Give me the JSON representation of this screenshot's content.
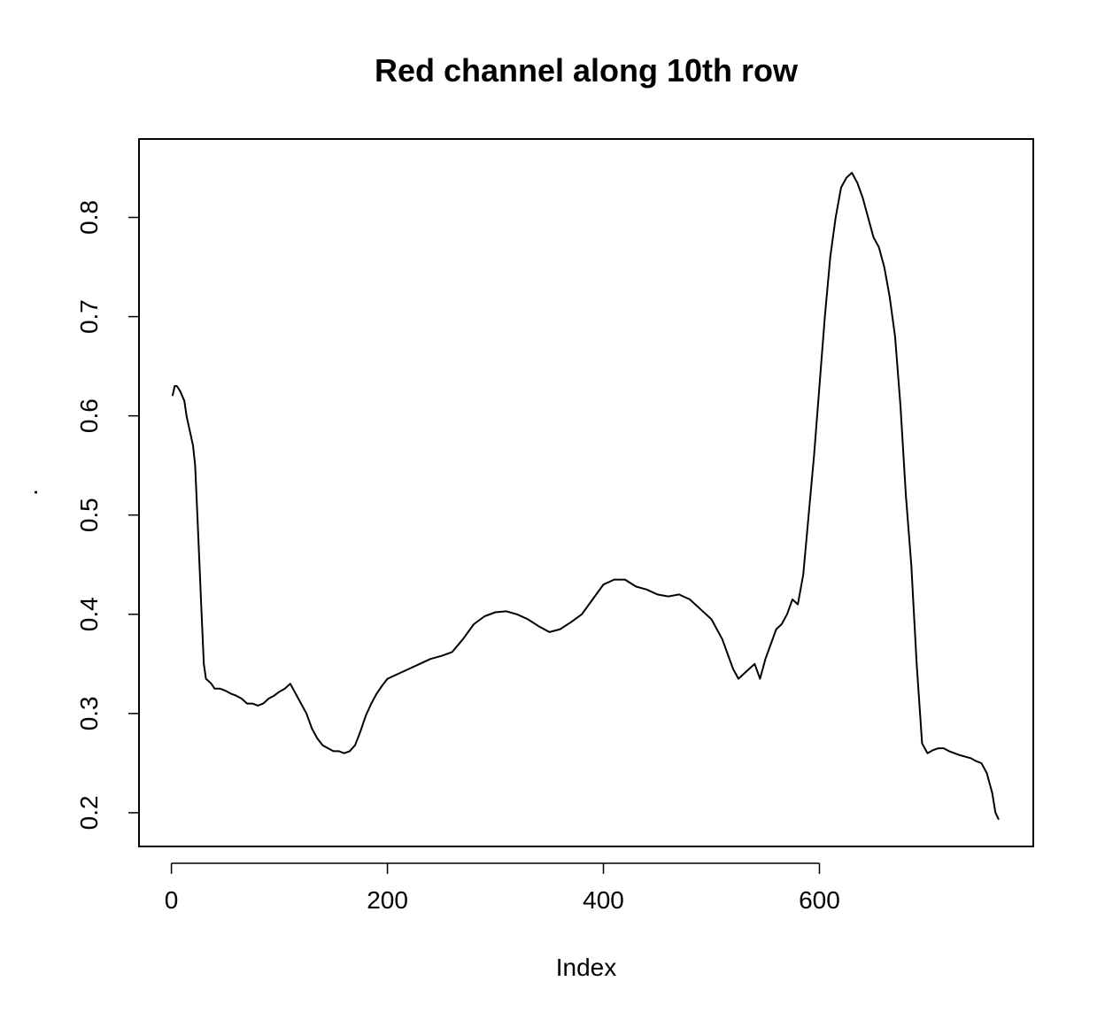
{
  "chart_data": {
    "type": "line",
    "title": "Red channel along 10th row",
    "xlabel": "Index",
    "ylabel": ".",
    "xlim": [
      -30,
      798
    ],
    "ylim": [
      0.166,
      0.879
    ],
    "xticks": [
      0,
      200,
      400,
      600
    ],
    "xtick_labels": [
      "0",
      "200",
      "400",
      "600"
    ],
    "yticks": [
      0.2,
      0.3,
      0.4,
      0.5,
      0.6,
      0.7,
      0.8
    ],
    "ytick_labels": [
      "0.2",
      "0.3",
      "0.4",
      "0.5",
      "0.6",
      "0.7",
      "0.8"
    ],
    "grid": false,
    "line_color": "#000000",
    "series": [
      {
        "x": [
          1,
          3,
          5,
          8,
          10,
          12,
          14,
          16,
          18,
          20,
          22,
          24,
          26,
          28,
          30,
          32,
          34,
          37,
          40,
          45,
          50,
          55,
          60,
          65,
          70,
          75,
          80,
          85,
          90,
          95,
          100,
          105,
          110,
          115,
          120,
          125,
          130,
          135,
          140,
          145,
          150,
          155,
          160,
          165,
          170,
          175,
          180,
          185,
          190,
          195,
          200,
          210,
          220,
          230,
          240,
          250,
          260,
          270,
          280,
          290,
          300,
          310,
          320,
          330,
          340,
          350,
          360,
          370,
          380,
          390,
          400,
          410,
          420,
          430,
          440,
          450,
          460,
          470,
          480,
          490,
          500,
          505,
          510,
          515,
          520,
          525,
          530,
          535,
          540,
          545,
          550,
          555,
          560,
          565,
          570,
          575,
          580,
          585,
          590,
          595,
          600,
          605,
          610,
          615,
          620,
          625,
          630,
          635,
          640,
          645,
          650,
          655,
          660,
          665,
          670,
          675,
          680,
          685,
          690,
          695,
          700,
          705,
          710,
          715,
          720,
          730,
          740,
          745,
          750,
          755,
          760,
          763,
          766
        ],
        "y": [
          0.62,
          0.63,
          0.63,
          0.625,
          0.62,
          0.615,
          0.6,
          0.59,
          0.58,
          0.57,
          0.55,
          0.5,
          0.45,
          0.4,
          0.35,
          0.335,
          0.333,
          0.33,
          0.325,
          0.325,
          0.323,
          0.32,
          0.318,
          0.315,
          0.31,
          0.31,
          0.308,
          0.31,
          0.315,
          0.318,
          0.322,
          0.325,
          0.33,
          0.32,
          0.31,
          0.3,
          0.285,
          0.275,
          0.268,
          0.265,
          0.262,
          0.262,
          0.26,
          0.262,
          0.268,
          0.282,
          0.298,
          0.31,
          0.32,
          0.328,
          0.335,
          0.34,
          0.345,
          0.35,
          0.355,
          0.358,
          0.362,
          0.375,
          0.39,
          0.398,
          0.402,
          0.403,
          0.4,
          0.395,
          0.388,
          0.382,
          0.385,
          0.392,
          0.4,
          0.415,
          0.43,
          0.435,
          0.435,
          0.428,
          0.425,
          0.42,
          0.418,
          0.42,
          0.415,
          0.405,
          0.395,
          0.385,
          0.375,
          0.36,
          0.345,
          0.335,
          0.34,
          0.345,
          0.35,
          0.335,
          0.355,
          0.37,
          0.385,
          0.39,
          0.4,
          0.415,
          0.41,
          0.44,
          0.5,
          0.56,
          0.63,
          0.7,
          0.76,
          0.8,
          0.83,
          0.84,
          0.845,
          0.835,
          0.82,
          0.8,
          0.78,
          0.77,
          0.75,
          0.72,
          0.68,
          0.61,
          0.52,
          0.45,
          0.35,
          0.27,
          0.26,
          0.263,
          0.265,
          0.265,
          0.262,
          0.258,
          0.255,
          0.252,
          0.25,
          0.24,
          0.22,
          0.2,
          0.193
        ]
      }
    ]
  }
}
